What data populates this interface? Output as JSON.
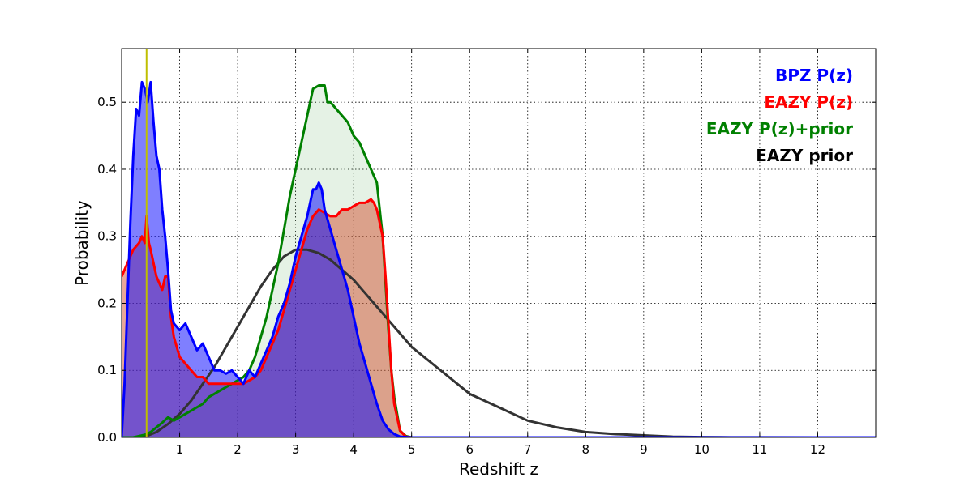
{
  "chart_data": {
    "type": "area",
    "xlabel": "Redshift z",
    "ylabel": "Probability",
    "xlim": [
      0,
      13
    ],
    "ylim": [
      0,
      0.58
    ],
    "x_ticks": [
      "1",
      "2",
      "3",
      "4",
      "5",
      "6",
      "7",
      "8",
      "9",
      "10",
      "11",
      "12"
    ],
    "y_ticks": [
      "0.0",
      "0.1",
      "0.2",
      "0.3",
      "0.4",
      "0.5"
    ],
    "grid": true,
    "legend_position": "top-right",
    "vertical_marker": {
      "x": 0.43,
      "color": "#bfbf00"
    },
    "series": [
      {
        "name": "BPZ P(z)",
        "color": "#0000ff",
        "fill": "rgba(0,0,255,0.5)",
        "x": [
          0,
          0.05,
          0.1,
          0.15,
          0.2,
          0.25,
          0.3,
          0.35,
          0.4,
          0.45,
          0.5,
          0.55,
          0.6,
          0.65,
          0.7,
          0.75,
          0.8,
          0.85,
          0.9,
          1.0,
          1.1,
          1.2,
          1.3,
          1.4,
          1.5,
          1.6,
          1.7,
          1.8,
          1.9,
          2.0,
          2.1,
          2.2,
          2.3,
          2.4,
          2.5,
          2.6,
          2.7,
          2.8,
          2.9,
          3.0,
          3.1,
          3.2,
          3.3,
          3.35,
          3.4,
          3.45,
          3.5,
          3.6,
          3.7,
          3.8,
          3.9,
          4.0,
          4.1,
          4.2,
          4.3,
          4.4,
          4.5,
          4.6,
          4.7,
          4.8,
          5.0,
          13.0
        ],
        "y": [
          0.0,
          0.08,
          0.2,
          0.32,
          0.42,
          0.49,
          0.48,
          0.53,
          0.52,
          0.5,
          0.53,
          0.47,
          0.42,
          0.4,
          0.34,
          0.3,
          0.25,
          0.19,
          0.17,
          0.16,
          0.17,
          0.15,
          0.13,
          0.14,
          0.12,
          0.1,
          0.1,
          0.095,
          0.1,
          0.09,
          0.08,
          0.1,
          0.09,
          0.11,
          0.13,
          0.15,
          0.18,
          0.2,
          0.23,
          0.27,
          0.3,
          0.33,
          0.37,
          0.37,
          0.38,
          0.37,
          0.34,
          0.31,
          0.28,
          0.25,
          0.22,
          0.18,
          0.14,
          0.11,
          0.08,
          0.05,
          0.025,
          0.012,
          0.005,
          0.001,
          0.0,
          0.0
        ]
      },
      {
        "name": "EAZY P(z)",
        "color": "#ff0000",
        "fill": "rgba(210,80,50,0.5)",
        "x": [
          0,
          0.1,
          0.2,
          0.3,
          0.35,
          0.4,
          0.43,
          0.47,
          0.5,
          0.6,
          0.7,
          0.75,
          0.8,
          0.85,
          0.9,
          1.0,
          1.1,
          1.2,
          1.3,
          1.4,
          1.5,
          1.6,
          1.7,
          1.8,
          1.9,
          2.0,
          2.1,
          2.2,
          2.3,
          2.4,
          2.5,
          2.6,
          2.7,
          2.8,
          2.9,
          3.0,
          3.1,
          3.2,
          3.3,
          3.4,
          3.5,
          3.6,
          3.7,
          3.8,
          3.9,
          4.0,
          4.1,
          4.2,
          4.3,
          4.35,
          4.4,
          4.5,
          4.55,
          4.6,
          4.65,
          4.7,
          4.8,
          4.9,
          5.0,
          13.0
        ],
        "y": [
          0.24,
          0.26,
          0.28,
          0.29,
          0.3,
          0.29,
          0.33,
          0.29,
          0.28,
          0.24,
          0.22,
          0.24,
          0.24,
          0.18,
          0.15,
          0.12,
          0.11,
          0.1,
          0.09,
          0.09,
          0.08,
          0.08,
          0.08,
          0.08,
          0.08,
          0.08,
          0.08,
          0.085,
          0.09,
          0.1,
          0.12,
          0.14,
          0.16,
          0.19,
          0.22,
          0.25,
          0.28,
          0.31,
          0.33,
          0.34,
          0.335,
          0.33,
          0.33,
          0.34,
          0.34,
          0.345,
          0.35,
          0.35,
          0.355,
          0.35,
          0.34,
          0.3,
          0.24,
          0.17,
          0.1,
          0.05,
          0.01,
          0.001,
          0.0,
          0.0
        ]
      },
      {
        "name": "EAZY P(z)+prior",
        "color": "#008000",
        "fill": "rgba(0,128,0,0.1)",
        "x": [
          0,
          0.2,
          0.4,
          0.5,
          0.6,
          0.7,
          0.8,
          0.9,
          1.0,
          1.1,
          1.2,
          1.3,
          1.4,
          1.5,
          1.6,
          1.7,
          1.8,
          1.9,
          2.0,
          2.1,
          2.2,
          2.3,
          2.4,
          2.5,
          2.6,
          2.7,
          2.8,
          2.9,
          3.0,
          3.1,
          3.2,
          3.3,
          3.4,
          3.5,
          3.55,
          3.6,
          3.7,
          3.8,
          3.9,
          4.0,
          4.1,
          4.2,
          4.3,
          4.4,
          4.5,
          4.55,
          4.6,
          4.65,
          4.7,
          4.8,
          4.9,
          5.0,
          12.0
        ],
        "y": [
          0.0,
          0.0,
          0.004,
          0.008,
          0.015,
          0.022,
          0.03,
          0.025,
          0.03,
          0.035,
          0.04,
          0.045,
          0.05,
          0.06,
          0.065,
          0.07,
          0.075,
          0.08,
          0.085,
          0.09,
          0.1,
          0.12,
          0.15,
          0.18,
          0.22,
          0.26,
          0.31,
          0.36,
          0.4,
          0.44,
          0.48,
          0.52,
          0.525,
          0.525,
          0.5,
          0.5,
          0.49,
          0.48,
          0.47,
          0.45,
          0.44,
          0.42,
          0.4,
          0.38,
          0.3,
          0.23,
          0.16,
          0.1,
          0.06,
          0.01,
          0.002,
          0.0,
          0.0
        ]
      },
      {
        "name": "EAZY prior",
        "color": "#333333",
        "x": [
          0,
          0.2,
          0.4,
          0.6,
          0.8,
          1.0,
          1.2,
          1.4,
          1.6,
          1.8,
          2.0,
          2.2,
          2.4,
          2.6,
          2.8,
          3.0,
          3.2,
          3.4,
          3.6,
          3.8,
          4.0,
          4.2,
          4.4,
          4.6,
          4.8,
          5.0,
          5.5,
          6.0,
          6.5,
          7.0,
          7.5,
          8.0,
          8.5,
          9.0,
          9.5,
          10.0,
          10.5,
          11.0,
          12.0
        ],
        "y": [
          0.0,
          0.0,
          0.001,
          0.008,
          0.02,
          0.035,
          0.055,
          0.08,
          0.105,
          0.135,
          0.165,
          0.195,
          0.225,
          0.25,
          0.27,
          0.28,
          0.28,
          0.275,
          0.265,
          0.25,
          0.235,
          0.215,
          0.195,
          0.175,
          0.155,
          0.135,
          0.1,
          0.065,
          0.045,
          0.025,
          0.015,
          0.008,
          0.005,
          0.003,
          0.001,
          0.0005,
          0.0002,
          0.0001,
          0.0
        ]
      }
    ]
  }
}
